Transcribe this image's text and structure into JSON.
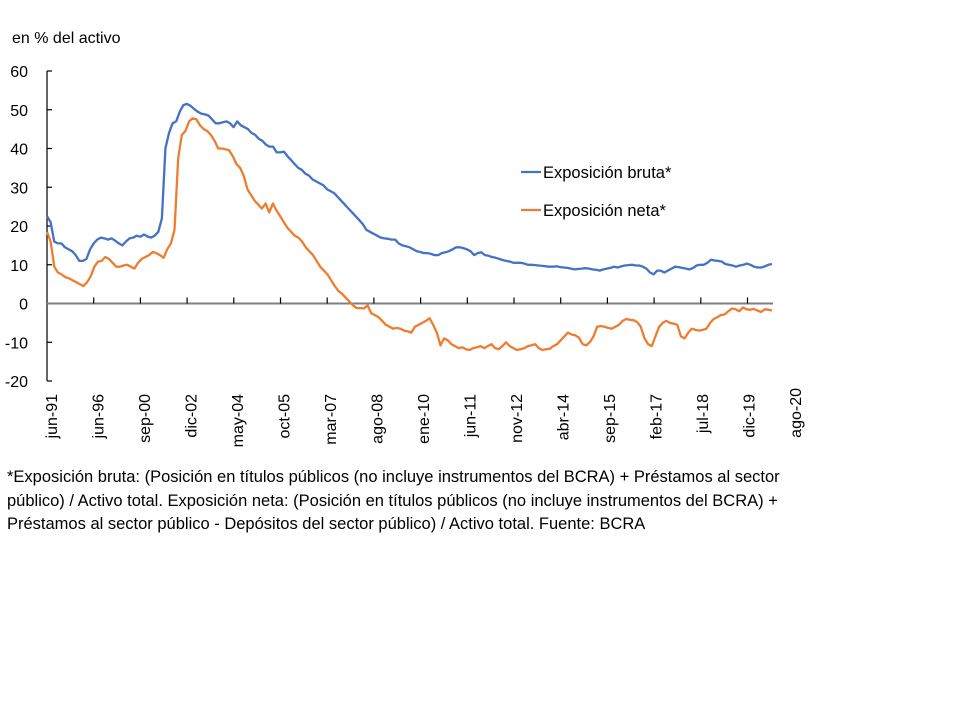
{
  "chart_data": {
    "type": "line",
    "title": "",
    "ylabel": "en % del activo",
    "xlabel": "",
    "ylim": [
      -20,
      60
    ],
    "yticks": [
      60,
      50,
      40,
      30,
      20,
      10,
      0,
      -10,
      -20
    ],
    "xtick_labels": [
      "jun-91",
      "jun-96",
      "sep-00",
      "dic-02",
      "may-04",
      "oct-05",
      "mar-07",
      "ago-08",
      "ene-10",
      "jun-11",
      "nov-12",
      "abr-14",
      "sep-15",
      "feb-17",
      "jul-18",
      "dic-19",
      "ago-20"
    ],
    "grid": false,
    "legend_position": "right-center",
    "series": [
      {
        "name": "Exposición bruta*",
        "color": "#4472C4",
        "values": [
          22.5,
          21,
          16,
          15.5,
          15.5,
          14.5,
          14,
          13.5,
          12.5,
          11,
          11,
          11.5,
          14,
          15.5,
          16.5,
          17,
          16.8,
          16.5,
          16.8,
          16.2,
          15.5,
          15,
          16,
          16.8,
          17,
          17.5,
          17.2,
          17.8,
          17.3,
          17,
          17.5,
          18.5,
          22,
          40,
          44,
          46.5,
          47,
          49.5,
          51.2,
          51.5,
          51,
          50.2,
          49.5,
          49,
          48.8,
          48.5,
          47.5,
          46.5,
          46.5,
          46.8,
          47,
          46.5,
          45.5,
          47,
          46,
          45.5,
          45,
          44,
          43.5,
          42.5,
          42,
          41,
          40.5,
          40.5,
          39,
          39,
          39.2,
          38,
          37,
          36,
          35,
          34.5,
          33.5,
          33,
          32,
          31.5,
          31,
          30.5,
          29.5,
          29,
          28.5,
          27.5,
          26.5,
          25.5,
          24.5,
          23.5,
          22.5,
          21.5,
          20.5,
          19,
          18.5,
          18,
          17.5,
          17,
          16.8,
          16.7,
          16.5,
          16.5,
          15.5,
          15,
          14.8,
          14.5,
          14,
          13.5,
          13.3,
          13,
          13,
          12.8,
          12.5,
          12.5,
          13,
          13.2,
          13.5,
          14,
          14.5,
          14.5,
          14.3,
          14,
          13.5,
          12.5,
          13,
          13.2,
          12.5,
          12.3,
          12,
          11.8,
          11.5,
          11.2,
          11,
          10.8,
          10.5,
          10.5,
          10.5,
          10.3,
          10,
          10,
          9.9,
          9.8,
          9.7,
          9.6,
          9.5,
          9.5,
          9.6,
          9.4,
          9.3,
          9.2,
          9,
          8.8,
          8.9,
          9,
          9.1,
          9,
          8.8,
          8.7,
          8.5,
          8.8,
          9,
          9.2,
          9.5,
          9.3,
          9.6,
          9.8,
          9.9,
          10,
          9.8,
          9.8,
          9.5,
          9,
          8,
          7.5,
          8.5,
          8.5,
          8,
          8.5,
          9,
          9.5,
          9.4,
          9.2,
          9,
          8.8,
          9.2,
          9.8,
          10,
          10,
          10.5,
          11.3,
          11.1,
          11,
          10.8,
          10.2,
          10,
          9.8,
          9.5,
          9.8,
          10,
          10.3,
          10,
          9.5,
          9.3,
          9.3,
          9.6,
          10,
          10.2
        ]
      },
      {
        "name": "Exposición neta*",
        "color": "#ED7D31",
        "values": [
          18.5,
          16,
          9.5,
          8,
          7.5,
          6.8,
          6.5,
          6,
          5.5,
          5,
          4.5,
          5.5,
          7,
          9.5,
          10.8,
          11,
          12,
          11.5,
          10.5,
          9.5,
          9.5,
          9.8,
          10,
          9.5,
          9,
          10.5,
          11.5,
          12,
          12.5,
          13.3,
          13,
          12.5,
          11.8,
          14,
          15.5,
          19,
          37.5,
          43.5,
          44.5,
          47,
          47.8,
          47.5,
          46,
          45,
          44.5,
          43.5,
          42,
          40,
          40,
          39.8,
          39.5,
          38,
          36,
          35,
          33,
          29.5,
          28,
          26.5,
          25.5,
          24.5,
          25.8,
          23.5,
          25.8,
          24,
          22.5,
          21,
          19.5,
          18.5,
          17.5,
          17,
          16,
          14.5,
          13.5,
          12.5,
          11,
          9.5,
          8.5,
          7.5,
          6,
          4.5,
          3.2,
          2.5,
          1.5,
          0.5,
          -0.5,
          -1.2,
          -1.2,
          -1.3,
          -0.5,
          -2.5,
          -3,
          -3.5,
          -4.5,
          -5.5,
          -6,
          -6.5,
          -6.3,
          -6.5,
          -7,
          -7.2,
          -7.5,
          -6,
          -5.5,
          -5,
          -4.5,
          -3.8,
          -5.5,
          -7.5,
          -10.8,
          -9,
          -9.5,
          -10.5,
          -11,
          -11.5,
          -11.3,
          -11.8,
          -12,
          -11.5,
          -11.3,
          -11,
          -11.5,
          -11,
          -10.5,
          -11.5,
          -11.8,
          -11,
          -10,
          -11,
          -11.5,
          -12,
          -11.8,
          -11.5,
          -11,
          -10.8,
          -10.5,
          -11.5,
          -12,
          -11.8,
          -11.7,
          -11,
          -10.5,
          -9.5,
          -8.5,
          -7.5,
          -8,
          -8.2,
          -8.8,
          -10.5,
          -10.8,
          -10,
          -8.5,
          -6,
          -5.8,
          -6,
          -6.3,
          -6.5,
          -6,
          -5.5,
          -4.5,
          -4,
          -4.2,
          -4.3,
          -4.8,
          -6,
          -9,
          -10.5,
          -11,
          -8.5,
          -6,
          -5,
          -4.5,
          -5,
          -5.2,
          -5.5,
          -8.5,
          -9,
          -7.5,
          -6.5,
          -6.8,
          -7,
          -6.8,
          -6.5,
          -5,
          -4,
          -3.5,
          -3,
          -2.8,
          -2,
          -1.3,
          -1.5,
          -2,
          -1,
          -1.5,
          -1.6,
          -1.4,
          -1.8,
          -2.2,
          -1.5,
          -1.6,
          -1.8
        ]
      }
    ]
  },
  "header": {
    "unit_label": "en % del activo"
  },
  "footnote": {
    "text": "*Exposición bruta: (Posición en títulos públicos (no incluye instrumentos del BCRA) + Préstamos al sector público) / Activo total. Exposición neta: (Posición en títulos públicos (no incluye instrumentos del BCRA) + Préstamos al sector público - Depósitos del sector público) / Activo total. Fuente: BCRA"
  }
}
